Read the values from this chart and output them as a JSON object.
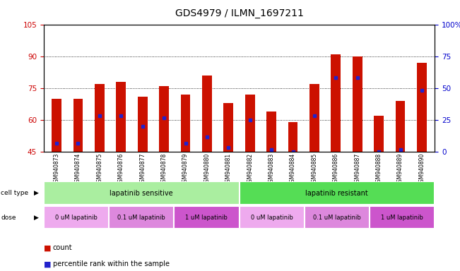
{
  "title": "GDS4979 / ILMN_1697211",
  "samples": [
    "GSM940873",
    "GSM940874",
    "GSM940875",
    "GSM940876",
    "GSM940877",
    "GSM940878",
    "GSM940879",
    "GSM940880",
    "GSM940881",
    "GSM940882",
    "GSM940883",
    "GSM940884",
    "GSM940885",
    "GSM940886",
    "GSM940887",
    "GSM940888",
    "GSM940889",
    "GSM940890"
  ],
  "bar_heights": [
    70,
    70,
    77,
    78,
    71,
    76,
    72,
    81,
    68,
    72,
    64,
    59,
    77,
    91,
    90,
    62,
    69,
    87
  ],
  "blue_marker_y": [
    49,
    49,
    62,
    62,
    57,
    61,
    49,
    52,
    47,
    60,
    46,
    45,
    62,
    80,
    80,
    45,
    46,
    74
  ],
  "ylim_left": [
    45,
    105
  ],
  "ylim_right": [
    0,
    100
  ],
  "yticks_left": [
    45,
    60,
    75,
    90,
    105
  ],
  "ytick_labels_left": [
    "45",
    "60",
    "75",
    "90",
    "105"
  ],
  "yticks_right": [
    0,
    25,
    50,
    75,
    100
  ],
  "ytick_labels_right": [
    "0",
    "25",
    "50",
    "75",
    "100%"
  ],
  "bar_color": "#CC1100",
  "marker_color": "#2222CC",
  "bar_bottom": 45,
  "cell_type_labels": [
    "lapatinib sensitive",
    "lapatinib resistant"
  ],
  "cell_type_colors": [
    "#AAEEA0",
    "#55DD55"
  ],
  "cell_type_ranges": [
    [
      0,
      9
    ],
    [
      9,
      18
    ]
  ],
  "dose_labels": [
    "0 uM lapatinib",
    "0.1 uM lapatinib",
    "1 uM lapatinib",
    "0 uM lapatinib",
    "0.1 uM lapatinib",
    "1 uM lapatinib"
  ],
  "dose_colors": [
    "#EEAAEE",
    "#DD88DD",
    "#CC55CC",
    "#EEAAEE",
    "#DD88DD",
    "#CC55CC"
  ],
  "dose_ranges": [
    [
      0,
      3
    ],
    [
      3,
      6
    ],
    [
      6,
      9
    ],
    [
      9,
      12
    ],
    [
      12,
      15
    ],
    [
      15,
      18
    ]
  ],
  "legend_count_color": "#CC1100",
  "legend_marker_color": "#2222CC",
  "bg_color": "#FFFFFF",
  "grid_color": "#000000",
  "title_fontsize": 10,
  "tick_label_color_left": "#CC0000",
  "tick_label_color_right": "#0000CC"
}
